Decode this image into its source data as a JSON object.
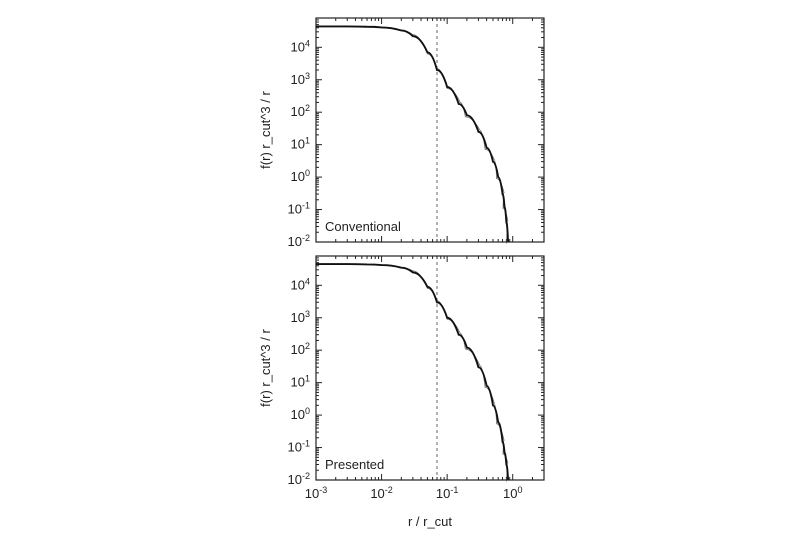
{
  "chart_data": [
    {
      "type": "line",
      "panel": "top",
      "annotation": "Conventional",
      "xlabel": "",
      "ylabel": "f(r) r_cut^3 / r",
      "xscale": "log",
      "yscale": "log",
      "xlim": [
        0.001,
        3
      ],
      "ylim": [
        0.01,
        80000
      ],
      "x_tick_labels": [],
      "y_tick_labels": [
        "10",
        "10",
        "10",
        "10",
        "10",
        "10",
        "10"
      ],
      "y_tick_exponents": [
        "4",
        "3",
        "2",
        "1",
        "0",
        "-1",
        "-2"
      ],
      "reference_x": 0.07,
      "grid": false,
      "series": [
        {
          "x": [
            0.001,
            0.003,
            0.006,
            0.01,
            0.02,
            0.03,
            0.05,
            0.07,
            0.1,
            0.15,
            0.2,
            0.3,
            0.4,
            0.5,
            0.6,
            0.7,
            0.75,
            0.8,
            0.85
          ],
          "values": [
            44000,
            44000,
            43000,
            41000,
            33000,
            22000,
            7000,
            2000,
            600,
            180,
            80,
            25,
            8,
            3,
            1,
            0.3,
            0.12,
            0.04,
            0.01
          ]
        }
      ]
    },
    {
      "type": "line",
      "panel": "bottom",
      "annotation": "Presented",
      "xlabel": "r / r_cut",
      "ylabel": "f(r) r_cut^3 / r",
      "xscale": "log",
      "yscale": "log",
      "xlim": [
        0.001,
        3
      ],
      "ylim": [
        0.01,
        80000
      ],
      "x_tick_labels": [
        "10",
        "10",
        "10",
        "10"
      ],
      "x_tick_exponents": [
        "-3",
        "-2",
        "-1",
        "0"
      ],
      "y_tick_labels": [
        "10",
        "10",
        "10",
        "10",
        "10",
        "10",
        "10"
      ],
      "y_tick_exponents": [
        "4",
        "3",
        "2",
        "1",
        "0",
        "-1",
        "-2"
      ],
      "reference_x": 0.07,
      "grid": false,
      "series": [
        {
          "x": [
            0.001,
            0.003,
            0.006,
            0.01,
            0.02,
            0.03,
            0.05,
            0.07,
            0.1,
            0.15,
            0.2,
            0.3,
            0.4,
            0.5,
            0.6,
            0.7,
            0.75,
            0.8,
            0.85
          ],
          "values": [
            45000,
            45000,
            44000,
            42000,
            35000,
            25000,
            9000,
            3000,
            1000,
            300,
            120,
            30,
            8,
            2,
            0.6,
            0.15,
            0.07,
            0.03,
            0.01
          ]
        }
      ]
    }
  ]
}
